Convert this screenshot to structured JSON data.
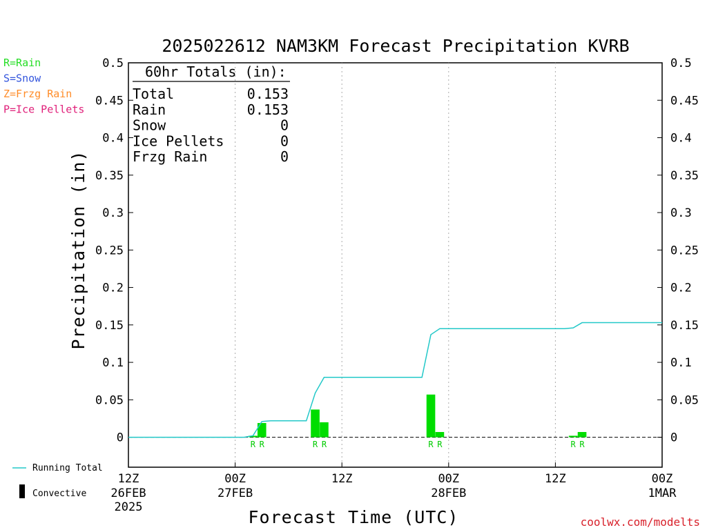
{
  "chart_data": {
    "type": "bar",
    "title": "2025022612 NAM3KM Forecast Precipitation KVRB",
    "xlabel": "Forecast Time (UTC)",
    "ylabel": "Precipitation (in)",
    "ylim": [
      -0.04,
      0.5
    ],
    "xlim": [
      0,
      60
    ],
    "yticks": [
      "0.5",
      "0.45",
      "0.4",
      "0.35",
      "0.3",
      "0.25",
      "0.2",
      "0.15",
      "0.1",
      "0.05",
      "0"
    ],
    "ytick_values": [
      0.5,
      0.45,
      0.4,
      0.35,
      0.3,
      0.25,
      0.2,
      0.15,
      0.1,
      0.05,
      0
    ],
    "xticks": [
      {
        "hour": 0,
        "line1": "12Z",
        "line2": "26FEB",
        "line3": "2025"
      },
      {
        "hour": 12,
        "line1": "00Z",
        "line2": "27FEB",
        "line3": ""
      },
      {
        "hour": 24,
        "line1": "12Z",
        "line2": "",
        "line3": ""
      },
      {
        "hour": 36,
        "line1": "00Z",
        "line2": "28FEB",
        "line3": ""
      },
      {
        "hour": 48,
        "line1": "12Z",
        "line2": "",
        "line3": ""
      },
      {
        "hour": 60,
        "line1": "00Z",
        "line2": "1MAR",
        "line3": ""
      }
    ],
    "grid_vertical_hours": [
      12,
      24,
      36,
      48
    ],
    "rain_bars": [
      {
        "hour": 14,
        "value": 0.002
      },
      {
        "hour": 15,
        "value": 0.019
      },
      {
        "hour": 21,
        "value": 0.037
      },
      {
        "hour": 22,
        "value": 0.02
      },
      {
        "hour": 34,
        "value": 0.057
      },
      {
        "hour": 35,
        "value": 0.007
      },
      {
        "hour": 50,
        "value": 0.002
      },
      {
        "hour": 51,
        "value": 0.007
      }
    ],
    "precip_type_marks": [
      {
        "hour": 14,
        "label": "R"
      },
      {
        "hour": 15,
        "label": "R"
      },
      {
        "hour": 21,
        "label": "R"
      },
      {
        "hour": 22,
        "label": "R"
      },
      {
        "hour": 34,
        "label": "R"
      },
      {
        "hour": 35,
        "label": "R"
      },
      {
        "hour": 50,
        "label": "R"
      },
      {
        "hour": 51,
        "label": "R"
      }
    ],
    "running_total": {
      "x": [
        0,
        13,
        14,
        15,
        16,
        19,
        20,
        21,
        22,
        26,
        27,
        28,
        29,
        30,
        31,
        32,
        33,
        34,
        35,
        36,
        37,
        40,
        45,
        49,
        50,
        51,
        52,
        56,
        60
      ],
      "y": [
        0,
        0,
        0.002,
        0.021,
        0.022,
        0.022,
        0.022,
        0.059,
        0.08,
        0.08,
        0.08,
        0.08,
        0.08,
        0.08,
        0.08,
        0.08,
        0.08,
        0.137,
        0.145,
        0.145,
        0.145,
        0.145,
        0.145,
        0.145,
        0.146,
        0.153,
        0.153,
        0.153,
        0.153
      ]
    },
    "legend": {
      "types": [
        {
          "label": "R=Rain",
          "color": "#22dd22"
        },
        {
          "label": "S=Snow",
          "color": "#3355dd"
        },
        {
          "label": "Z=Frzg Rain",
          "color": "#ff8c28"
        },
        {
          "label": "P=Ice Pellets",
          "color": "#e0207a"
        }
      ],
      "running_total_label": "Running Total",
      "convective_label": "Convective"
    },
    "totals": {
      "heading": "60hr Totals (in):",
      "rows": [
        {
          "label": "Total",
          "value": "0.153"
        },
        {
          "label": "Rain",
          "value": "0.153"
        },
        {
          "label": "Snow",
          "value": "0"
        },
        {
          "label": "Ice Pellets",
          "value": "0"
        },
        {
          "label": "Frzg Rain",
          "value": "0"
        }
      ]
    },
    "colors": {
      "rain_bar": "#00dd00",
      "running_total": "#22c8c8",
      "grid": "#aaaaaa",
      "zero_line": "#000000"
    }
  },
  "credit": "coolwx.com/modelts"
}
